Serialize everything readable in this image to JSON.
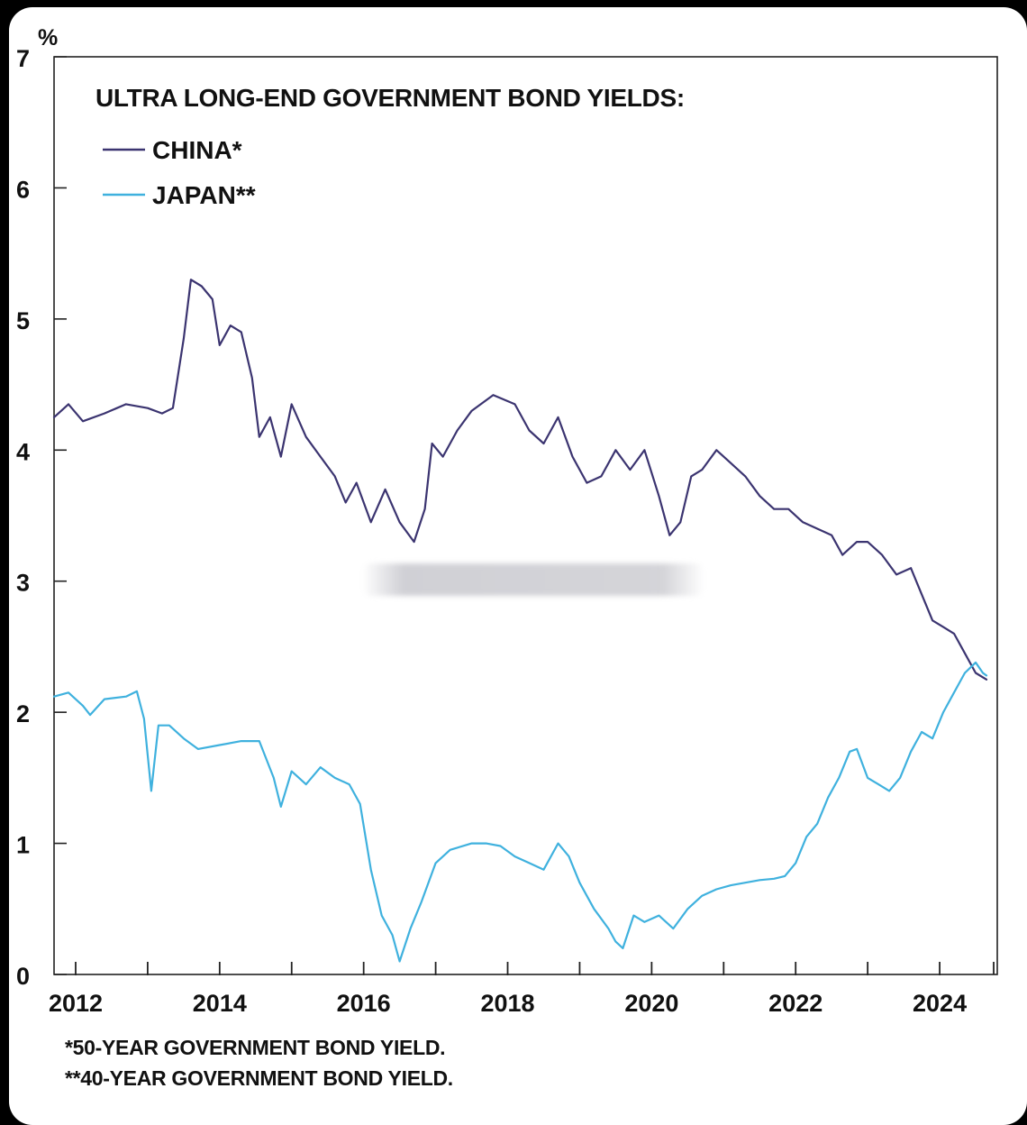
{
  "chart_data": {
    "type": "line",
    "title": "ULTRA LONG-END GOVERNMENT BOND YIELDS:",
    "ylabel": "%",
    "xlabel": "",
    "ylim": [
      0,
      7
    ],
    "xlim": [
      2011.7,
      2024.8
    ],
    "y_ticks": [
      "0",
      "1",
      "2",
      "3",
      "4",
      "5",
      "6",
      "7"
    ],
    "x_ticks": [
      "2012",
      "2014",
      "2016",
      "2018",
      "2020",
      "2022",
      "2024"
    ],
    "legend_placement": "top-left",
    "grid": false,
    "series": [
      {
        "name": "CHINA*",
        "color": "#3b3470",
        "points": [
          [
            2011.7,
            4.25
          ],
          [
            2011.9,
            4.35
          ],
          [
            2012.1,
            4.22
          ],
          [
            2012.4,
            4.28
          ],
          [
            2012.7,
            4.35
          ],
          [
            2013.0,
            4.32
          ],
          [
            2013.2,
            4.28
          ],
          [
            2013.35,
            4.32
          ],
          [
            2013.5,
            4.85
          ],
          [
            2013.6,
            5.3
          ],
          [
            2013.75,
            5.25
          ],
          [
            2013.9,
            5.15
          ],
          [
            2014.0,
            4.8
          ],
          [
            2014.15,
            4.95
          ],
          [
            2014.3,
            4.9
          ],
          [
            2014.45,
            4.55
          ],
          [
            2014.55,
            4.1
          ],
          [
            2014.7,
            4.25
          ],
          [
            2014.85,
            3.95
          ],
          [
            2015.0,
            4.35
          ],
          [
            2015.2,
            4.1
          ],
          [
            2015.4,
            3.95
          ],
          [
            2015.6,
            3.8
          ],
          [
            2015.75,
            3.6
          ],
          [
            2015.9,
            3.75
          ],
          [
            2016.1,
            3.45
          ],
          [
            2016.3,
            3.7
          ],
          [
            2016.5,
            3.45
          ],
          [
            2016.7,
            3.3
          ],
          [
            2016.85,
            3.55
          ],
          [
            2016.95,
            4.05
          ],
          [
            2017.1,
            3.95
          ],
          [
            2017.3,
            4.15
          ],
          [
            2017.5,
            4.3
          ],
          [
            2017.8,
            4.42
          ],
          [
            2018.1,
            4.35
          ],
          [
            2018.3,
            4.15
          ],
          [
            2018.5,
            4.05
          ],
          [
            2018.7,
            4.25
          ],
          [
            2018.9,
            3.95
          ],
          [
            2019.1,
            3.75
          ],
          [
            2019.3,
            3.8
          ],
          [
            2019.5,
            4.0
          ],
          [
            2019.7,
            3.85
          ],
          [
            2019.9,
            4.0
          ],
          [
            2020.1,
            3.65
          ],
          [
            2020.25,
            3.35
          ],
          [
            2020.4,
            3.45
          ],
          [
            2020.55,
            3.8
          ],
          [
            2020.7,
            3.85
          ],
          [
            2020.9,
            4.0
          ],
          [
            2021.1,
            3.9
          ],
          [
            2021.3,
            3.8
          ],
          [
            2021.5,
            3.65
          ],
          [
            2021.7,
            3.55
          ],
          [
            2021.9,
            3.55
          ],
          [
            2022.1,
            3.45
          ],
          [
            2022.3,
            3.4
          ],
          [
            2022.5,
            3.35
          ],
          [
            2022.65,
            3.2
          ],
          [
            2022.85,
            3.3
          ],
          [
            2023.0,
            3.3
          ],
          [
            2023.2,
            3.2
          ],
          [
            2023.4,
            3.05
          ],
          [
            2023.6,
            3.1
          ],
          [
            2023.75,
            2.9
          ],
          [
            2023.9,
            2.7
          ],
          [
            2024.05,
            2.65
          ],
          [
            2024.2,
            2.6
          ],
          [
            2024.35,
            2.45
          ],
          [
            2024.5,
            2.3
          ],
          [
            2024.65,
            2.25
          ]
        ]
      },
      {
        "name": "JAPAN**",
        "color": "#3fb1de",
        "points": [
          [
            2011.7,
            2.12
          ],
          [
            2011.9,
            2.15
          ],
          [
            2012.1,
            2.05
          ],
          [
            2012.2,
            1.98
          ],
          [
            2012.4,
            2.1
          ],
          [
            2012.7,
            2.12
          ],
          [
            2012.85,
            2.16
          ],
          [
            2012.95,
            1.95
          ],
          [
            2013.05,
            1.4
          ],
          [
            2013.15,
            1.9
          ],
          [
            2013.3,
            1.9
          ],
          [
            2013.5,
            1.8
          ],
          [
            2013.7,
            1.72
          ],
          [
            2014.0,
            1.75
          ],
          [
            2014.3,
            1.78
          ],
          [
            2014.55,
            1.78
          ],
          [
            2014.75,
            1.5
          ],
          [
            2014.85,
            1.28
          ],
          [
            2015.0,
            1.55
          ],
          [
            2015.2,
            1.45
          ],
          [
            2015.4,
            1.58
          ],
          [
            2015.6,
            1.5
          ],
          [
            2015.8,
            1.45
          ],
          [
            2015.95,
            1.3
          ],
          [
            2016.1,
            0.8
          ],
          [
            2016.25,
            0.45
          ],
          [
            2016.4,
            0.3
          ],
          [
            2016.5,
            0.1
          ],
          [
            2016.65,
            0.35
          ],
          [
            2016.8,
            0.55
          ],
          [
            2017.0,
            0.85
          ],
          [
            2017.2,
            0.95
          ],
          [
            2017.5,
            1.0
          ],
          [
            2017.7,
            1.0
          ],
          [
            2017.9,
            0.98
          ],
          [
            2018.1,
            0.9
          ],
          [
            2018.3,
            0.85
          ],
          [
            2018.5,
            0.8
          ],
          [
            2018.7,
            1.0
          ],
          [
            2018.85,
            0.9
          ],
          [
            2019.0,
            0.7
          ],
          [
            2019.2,
            0.5
          ],
          [
            2019.4,
            0.35
          ],
          [
            2019.5,
            0.25
          ],
          [
            2019.6,
            0.2
          ],
          [
            2019.75,
            0.45
          ],
          [
            2019.9,
            0.4
          ],
          [
            2020.1,
            0.45
          ],
          [
            2020.3,
            0.35
          ],
          [
            2020.5,
            0.5
          ],
          [
            2020.7,
            0.6
          ],
          [
            2020.9,
            0.65
          ],
          [
            2021.1,
            0.68
          ],
          [
            2021.3,
            0.7
          ],
          [
            2021.5,
            0.72
          ],
          [
            2021.7,
            0.73
          ],
          [
            2021.85,
            0.75
          ],
          [
            2022.0,
            0.85
          ],
          [
            2022.15,
            1.05
          ],
          [
            2022.3,
            1.15
          ],
          [
            2022.45,
            1.35
          ],
          [
            2022.6,
            1.5
          ],
          [
            2022.75,
            1.7
          ],
          [
            2022.85,
            1.72
          ],
          [
            2023.0,
            1.5
          ],
          [
            2023.15,
            1.45
          ],
          [
            2023.3,
            1.4
          ],
          [
            2023.45,
            1.5
          ],
          [
            2023.6,
            1.7
          ],
          [
            2023.75,
            1.85
          ],
          [
            2023.9,
            1.8
          ],
          [
            2024.05,
            2.0
          ],
          [
            2024.2,
            2.15
          ],
          [
            2024.35,
            2.3
          ],
          [
            2024.5,
            2.38
          ],
          [
            2024.6,
            2.3
          ],
          [
            2024.65,
            2.28
          ]
        ]
      }
    ]
  },
  "footnotes": [
    "*50-YEAR GOVERNMENT BOND YIELD.",
    "**40-YEAR GOVERNMENT BOND YIELD."
  ]
}
